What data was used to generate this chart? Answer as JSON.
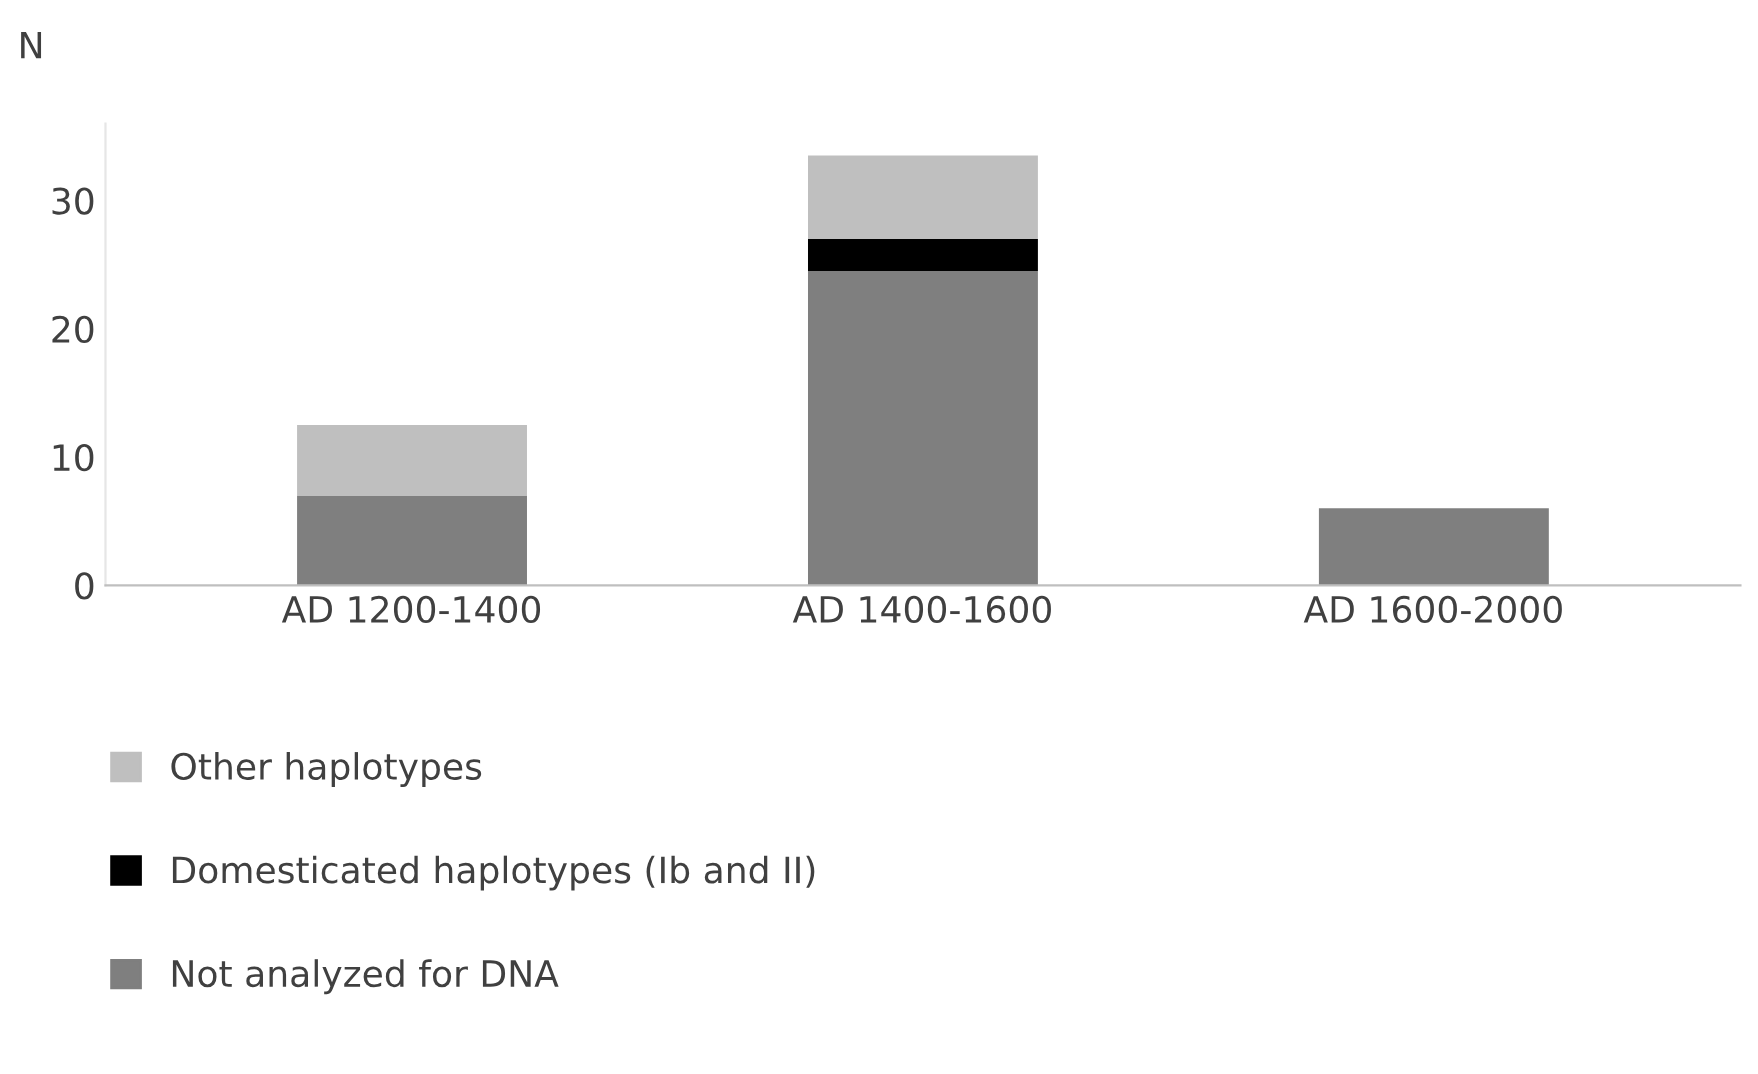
{
  "chart_data": {
    "type": "bar",
    "stacked": true,
    "ylabel": "N",
    "categories": [
      "AD 1200-1400",
      "AD 1400-1600",
      "AD 1600-2000"
    ],
    "series": [
      {
        "name": "Not analyzed for DNA",
        "color": "#7f7f7f",
        "values": [
          7,
          24.5,
          6
        ]
      },
      {
        "name": "Domesticated haplotypes (Ib and II)",
        "color": "#000000",
        "values": [
          0,
          2.5,
          0
        ]
      },
      {
        "name": "Other haplotypes",
        "color": "#bfbfbf",
        "values": [
          5.5,
          6.5,
          0
        ]
      }
    ],
    "ylim": [
      0,
      36
    ],
    "yticks": [
      0,
      10,
      20,
      30
    ],
    "grid": false,
    "legend": "bottom left"
  }
}
